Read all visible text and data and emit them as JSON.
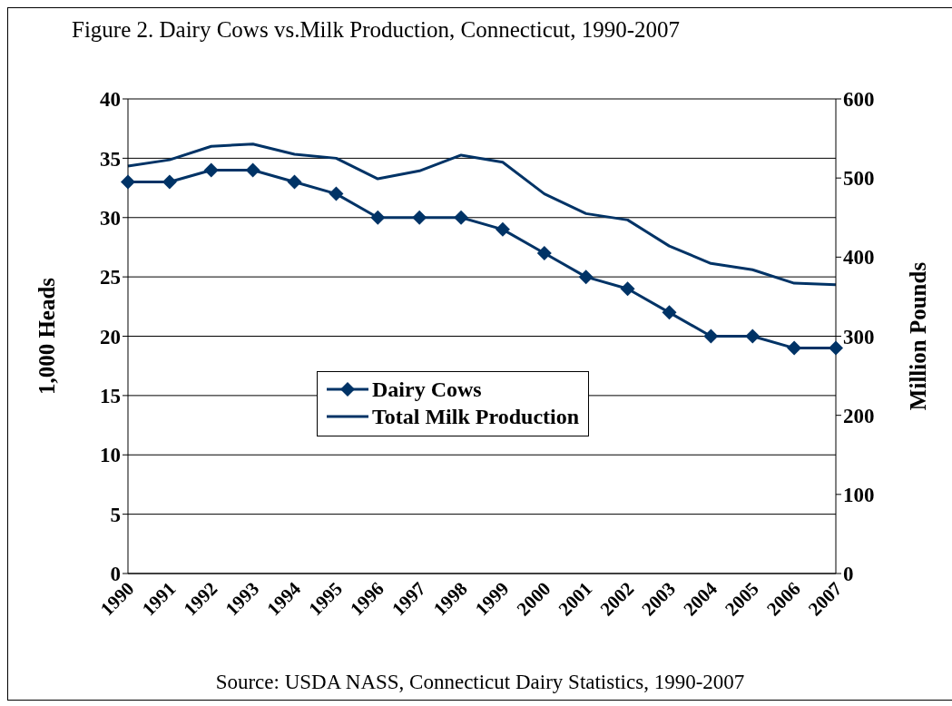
{
  "chart_data": {
    "type": "line",
    "title": "Figure 2. Dairy Cows vs.Milk Production, Connecticut, 1990-2007",
    "categories": [
      "1990",
      "1991",
      "1992",
      "1993",
      "1994",
      "1995",
      "1996",
      "1997",
      "1998",
      "1999",
      "2000",
      "2001",
      "2002",
      "2003",
      "2004",
      "2005",
      "2006",
      "2007"
    ],
    "series": [
      {
        "name": "Dairy Cows",
        "color": "#003366",
        "marker": "diamond",
        "values": [
          33,
          33,
          34,
          34,
          33,
          32,
          30,
          30,
          30,
          29,
          27,
          25,
          24,
          22,
          20,
          20,
          19,
          19
        ]
      },
      {
        "name": "Total Milk Production",
        "color": "#003366",
        "marker": "none",
        "axis": "y2",
        "values": [
          515,
          523,
          540,
          543,
          530,
          525,
          499,
          509,
          529,
          520,
          480,
          455,
          447,
          414,
          392,
          384,
          367,
          365
        ]
      }
    ],
    "ylabel": "1,000 Heads",
    "y2label": "Million Pounds",
    "ylim": [
      0,
      40
    ],
    "yticks": [
      0,
      5,
      10,
      15,
      20,
      25,
      30,
      35,
      40
    ],
    "y2lim": [
      0,
      600
    ],
    "y2ticks": [
      0,
      100,
      200,
      300,
      400,
      500,
      600
    ],
    "grid": "y",
    "legend": "center",
    "annotations": [
      "Source: USDA NASS, Connecticut Dairy Statistics, 1990-2007"
    ]
  }
}
